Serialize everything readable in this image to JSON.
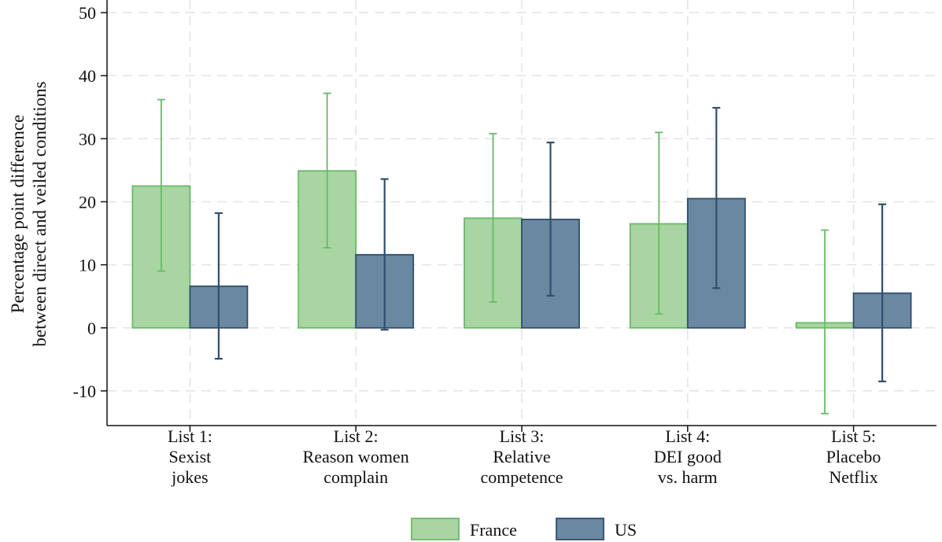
{
  "chart_data": {
    "type": "bar",
    "title": "",
    "xlabel": "",
    "ylabel": [
      "Percentage point difference",
      "between direct and veiled conditions"
    ],
    "ylim": [
      -15.5,
      52
    ],
    "yticks": [
      -10,
      0,
      10,
      20,
      30,
      40,
      50
    ],
    "grid": true,
    "legend_position": "bottom",
    "categories": [
      [
        "List 1:",
        "Sexist",
        "jokes"
      ],
      [
        "List 2:",
        "Reason women",
        "complain"
      ],
      [
        "List 3:",
        "Relative",
        "competence"
      ],
      [
        "List 4:",
        "DEI good",
        "vs. harm"
      ],
      [
        "List 5:",
        "Placebo",
        "Netflix"
      ]
    ],
    "series": [
      {
        "name": "France",
        "color": "#a8d5a2",
        "edge_color": "#6ab96a",
        "values": [
          22.5,
          24.9,
          17.4,
          16.5,
          0.8
        ],
        "ci_low": [
          9.0,
          12.7,
          4.1,
          2.2,
          -13.6
        ],
        "ci_high": [
          36.2,
          37.2,
          30.8,
          31.0,
          15.5
        ]
      },
      {
        "name": "US",
        "color": "#6a88a0",
        "edge_color": "#2f4f6e",
        "values": [
          6.6,
          11.6,
          17.2,
          20.5,
          5.5
        ],
        "ci_low": [
          -4.9,
          -0.3,
          5.1,
          6.3,
          -8.5
        ],
        "ci_high": [
          18.2,
          23.6,
          29.4,
          34.9,
          19.6
        ]
      }
    ]
  }
}
